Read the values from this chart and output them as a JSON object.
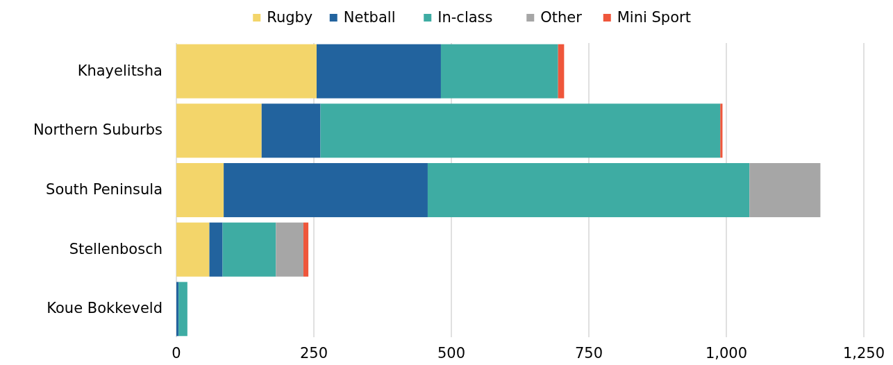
{
  "chart_data": {
    "type": "bar",
    "orientation": "horizontal",
    "stacked": true,
    "legend": "top",
    "grid": "x",
    "categories": [
      "Khayelitsha",
      "Northern Suburbs",
      "South Peninsula",
      "Stellenbosch",
      "Koue Bokkeveld"
    ],
    "xlim": [
      0,
      1250
    ],
    "xticks": [
      0,
      250,
      500,
      750,
      {
        "value": 1000,
        "label": "1,000"
      },
      {
        "value": 1250,
        "label": "1,250"
      }
    ],
    "series": [
      {
        "name": "Rugby",
        "color": "#f3d56a",
        "values": [
          255,
          155,
          86,
          60,
          0
        ]
      },
      {
        "name": "Netball",
        "color": "#22639e",
        "values": [
          226,
          107,
          371,
          24,
          4
        ]
      },
      {
        "name": "In-class",
        "color": "#3eaca3",
        "values": [
          213,
          727,
          585,
          97,
          16
        ]
      },
      {
        "name": "Other",
        "color": "#a6a6a6",
        "values": [
          0,
          0,
          129,
          50,
          0
        ]
      },
      {
        "name": "Mini Sport",
        "color": "#ef563b",
        "values": [
          11,
          4,
          0,
          9,
          0
        ]
      }
    ]
  }
}
